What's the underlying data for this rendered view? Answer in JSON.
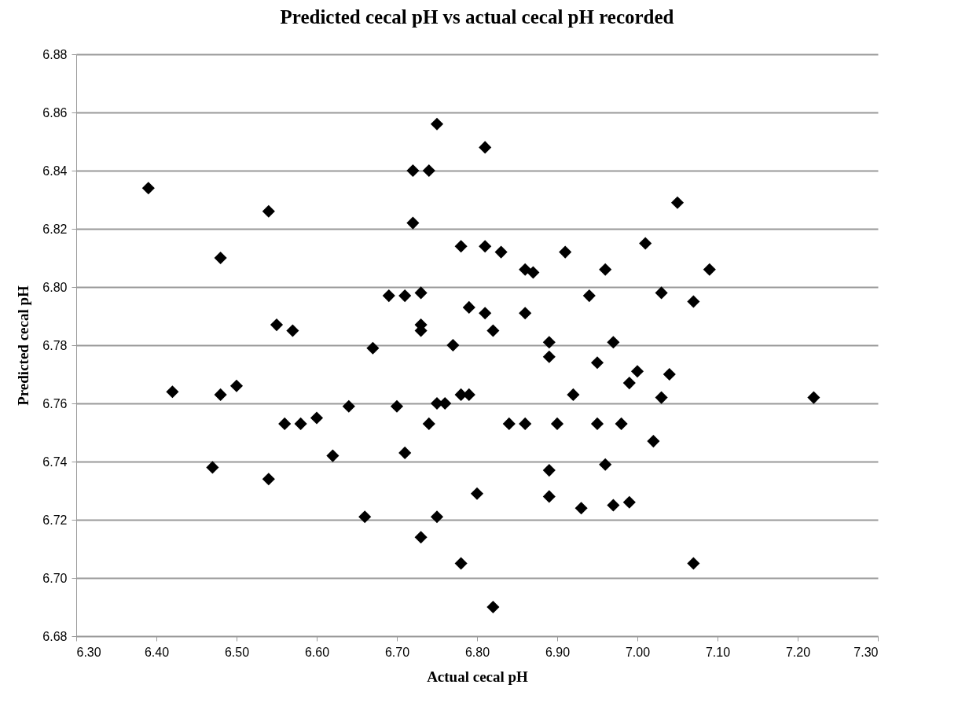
{
  "chart_data": {
    "type": "scatter",
    "title": "Predicted cecal pH vs actual cecal pH recorded",
    "xlabel": "Actual cecal pH",
    "ylabel": "Predicted cecal pH",
    "x": [
      6.39,
      6.42,
      6.47,
      6.48,
      6.48,
      6.5,
      6.54,
      6.54,
      6.55,
      6.56,
      6.57,
      6.58,
      6.6,
      6.62,
      6.64,
      6.66,
      6.67,
      6.69,
      6.7,
      6.71,
      6.71,
      6.72,
      6.72,
      6.73,
      6.73,
      6.73,
      6.73,
      6.74,
      6.74,
      6.75,
      6.75,
      6.75,
      6.76,
      6.77,
      6.78,
      6.78,
      6.78,
      6.79,
      6.79,
      6.8,
      6.81,
      6.81,
      6.81,
      6.82,
      6.82,
      6.83,
      6.84,
      6.86,
      6.86,
      6.86,
      6.87,
      6.89,
      6.89,
      6.89,
      6.89,
      6.9,
      6.91,
      6.92,
      6.93,
      6.94,
      6.95,
      6.95,
      6.96,
      6.96,
      6.97,
      6.97,
      6.98,
      6.99,
      6.99,
      7.0,
      7.01,
      7.02,
      7.03,
      7.03,
      7.04,
      7.05,
      7.07,
      7.07,
      7.09,
      7.22
    ],
    "series": [
      {
        "color": "#000000",
        "values": [
          6.834,
          6.764,
          6.738,
          6.763,
          6.81,
          6.766,
          6.826,
          6.734,
          6.787,
          6.753,
          6.785,
          6.753,
          6.755,
          6.742,
          6.759,
          6.721,
          6.779,
          6.797,
          6.759,
          6.797,
          6.743,
          6.84,
          6.822,
          6.798,
          6.787,
          6.785,
          6.714,
          6.84,
          6.753,
          6.856,
          6.76,
          6.721,
          6.76,
          6.78,
          6.814,
          6.763,
          6.705,
          6.793,
          6.763,
          6.729,
          6.848,
          6.814,
          6.791,
          6.785,
          6.69,
          6.812,
          6.753,
          6.806,
          6.791,
          6.753,
          6.805,
          6.781,
          6.776,
          6.737,
          6.728,
          6.753,
          6.812,
          6.763,
          6.724,
          6.797,
          6.774,
          6.753,
          6.806,
          6.739,
          6.781,
          6.725,
          6.753,
          6.767,
          6.726,
          6.771,
          6.815,
          6.747,
          6.798,
          6.762,
          6.77,
          6.829,
          6.795,
          6.705,
          6.806,
          6.762
        ]
      }
    ],
    "xlim": [
      6.3,
      7.3
    ],
    "xticks": [
      {
        "value": 6.3,
        "label": "6.30"
      },
      {
        "value": 6.4,
        "label": "6.40"
      },
      {
        "value": 6.5,
        "label": "6.50"
      },
      {
        "value": 6.6,
        "label": "6.60"
      },
      {
        "value": 6.7,
        "label": "6.70"
      },
      {
        "value": 6.8,
        "label": "6.80"
      },
      {
        "value": 6.9,
        "label": "6.90"
      },
      {
        "value": 7.0,
        "label": "7.00"
      },
      {
        "value": 7.1,
        "label": "7.10"
      },
      {
        "value": 7.2,
        "label": "7.20"
      },
      {
        "value": 7.3,
        "label": "7.30"
      }
    ],
    "ylim": [
      6.68,
      6.88
    ],
    "yticks": [
      {
        "value": 6.68,
        "label": "6.68"
      },
      {
        "value": 6.7,
        "label": "6.70"
      },
      {
        "value": 6.72,
        "label": "6.72"
      },
      {
        "value": 6.74,
        "label": "6.74"
      },
      {
        "value": 6.76,
        "label": "6.76"
      },
      {
        "value": 6.78,
        "label": "6.78"
      },
      {
        "value": 6.8,
        "label": "6.80"
      },
      {
        "value": 6.82,
        "label": "6.82"
      },
      {
        "value": 6.84,
        "label": "6.84"
      },
      {
        "value": 6.86,
        "label": "6.86"
      },
      {
        "value": 6.88,
        "label": "6.88"
      }
    ],
    "grid": "y",
    "marker": "diamond"
  }
}
